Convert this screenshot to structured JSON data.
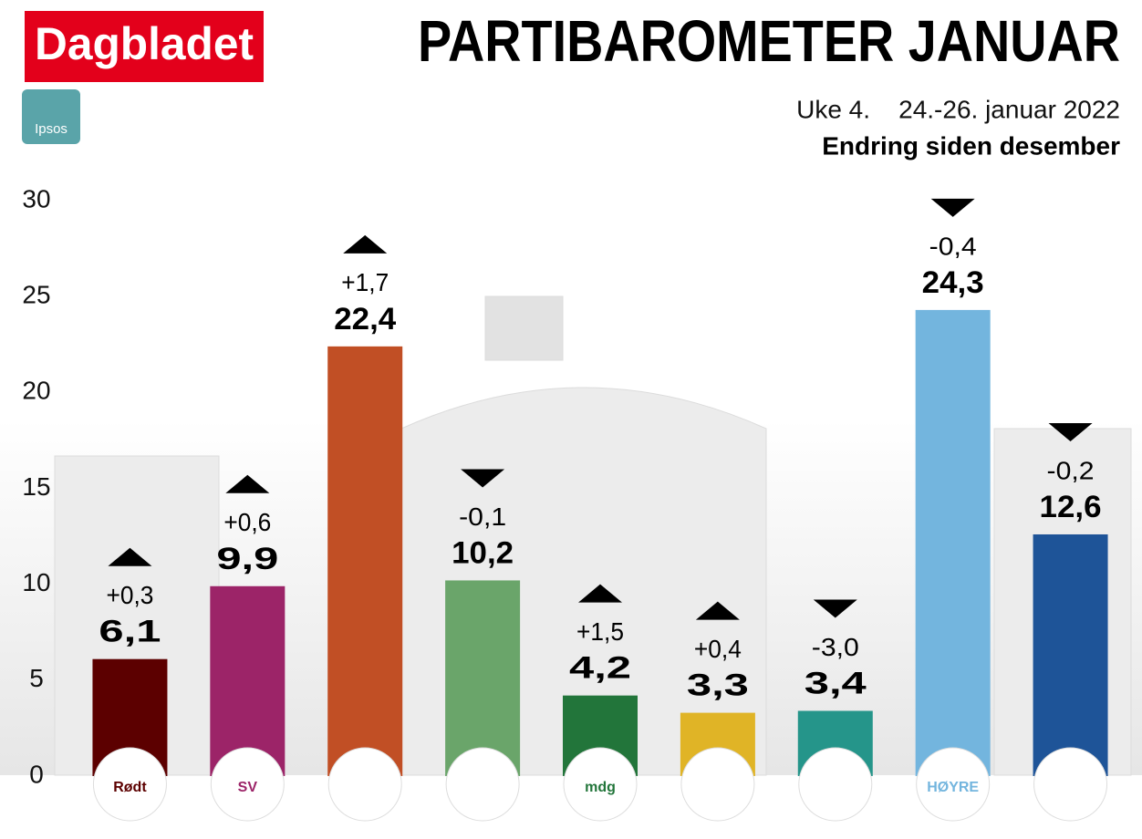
{
  "brand": "Dagbladet",
  "source": "Ipsos",
  "chart_data": {
    "type": "bar",
    "title": "PARTIBAROMETER JANUAR",
    "subtitle": "Uke 4.    24.-26. januar 2022",
    "annotation": "Endring siden desember",
    "categories": [
      "Rødt",
      "SV",
      null,
      null,
      "mdg",
      null,
      null,
      "HØYRE",
      null
    ],
    "values": [
      6.1,
      9.9,
      22.4,
      10.2,
      4.2,
      3.3,
      3.4,
      24.3,
      12.6
    ],
    "value_labels": [
      "6,1",
      "9,9",
      "22,4",
      "10,2",
      "4,2",
      "3,3",
      "3,4",
      "24,3",
      "12,6"
    ],
    "changes": [
      0.3,
      0.6,
      1.7,
      -0.1,
      1.5,
      0.4,
      -3.0,
      -0.4,
      -0.2
    ],
    "change_labels": [
      "+0,3",
      "+0,6",
      "+1,7",
      "-0,1",
      "+1,5",
      "+0,4",
      "-3,0",
      "-0,4",
      "-0,2"
    ],
    "colors": [
      "#5c0000",
      "#9c2468",
      "#c14f25",
      "#6aa56a",
      "#22753a",
      "#e0b426",
      "#25958a",
      "#73b5de",
      "#1e5498"
    ],
    "ylim": [
      0,
      30
    ],
    "yticks": [
      0,
      5,
      10,
      15,
      20,
      25,
      30
    ]
  }
}
